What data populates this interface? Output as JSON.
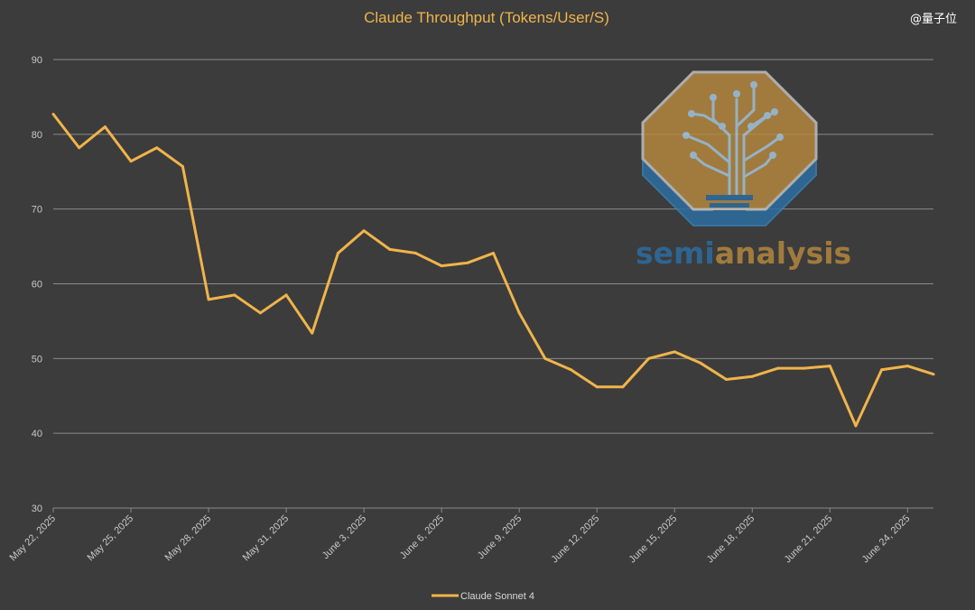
{
  "watermark": "@量子位",
  "colors": {
    "background": "#3c3c3c",
    "line": "#f0b44a",
    "grid": "#8a8a8a",
    "logo_gold": "#b88a3e",
    "logo_blue": "#2c6fa4"
  },
  "logo": {
    "part1": "semi",
    "part2": "analysis"
  },
  "chart_data": {
    "type": "line",
    "title": "Claude Throughput (Tokens/User/S)",
    "xlabel": "",
    "ylabel": "",
    "ylim": [
      30,
      90
    ],
    "yticks": [
      30,
      40,
      50,
      60,
      70,
      80,
      90
    ],
    "grid": true,
    "legend_position": "bottom-center",
    "x": [
      "May 22, 2025",
      "May 23, 2025",
      "May 24, 2025",
      "May 25, 2025",
      "May 26, 2025",
      "May 27, 2025",
      "May 28, 2025",
      "May 29, 2025",
      "May 30, 2025",
      "May 31, 2025",
      "June 1, 2025",
      "June 2, 2025",
      "June 3, 2025",
      "June 4, 2025",
      "June 5, 2025",
      "June 6, 2025",
      "June 7, 2025",
      "June 8, 2025",
      "June 9, 2025",
      "June 10, 2025",
      "June 11, 2025",
      "June 12, 2025",
      "June 13, 2025",
      "June 14, 2025",
      "June 15, 2025",
      "June 16, 2025",
      "June 17, 2025",
      "June 18, 2025",
      "June 19, 2025",
      "June 20, 2025",
      "June 21, 2025",
      "June 22, 2025",
      "June 23, 2025",
      "June 24, 2025",
      "June 25, 2025"
    ],
    "xtick_labels": [
      "May 22, 2025",
      "May 25, 2025",
      "May 28, 2025",
      "May 31, 2025",
      "June 3, 2025",
      "June 6, 2025",
      "June 9, 2025",
      "June 12, 2025",
      "June 15, 2025",
      "June 18, 2025",
      "June 21, 2025",
      "June 24, 2025"
    ],
    "series": [
      {
        "name": "Claude Sonnet 4",
        "color": "#f0b44a",
        "values": [
          82.7,
          78.2,
          81.0,
          76.4,
          78.2,
          75.7,
          57.9,
          58.5,
          56.1,
          58.5,
          53.4,
          64.1,
          67.1,
          64.6,
          64.1,
          62.4,
          62.8,
          64.1,
          56.1,
          50.0,
          48.5,
          46.2,
          46.2,
          50.0,
          50.9,
          49.4,
          47.2,
          47.6,
          48.7,
          48.7,
          49.0,
          41.0,
          48.5,
          49.0,
          47.9
        ]
      }
    ]
  }
}
